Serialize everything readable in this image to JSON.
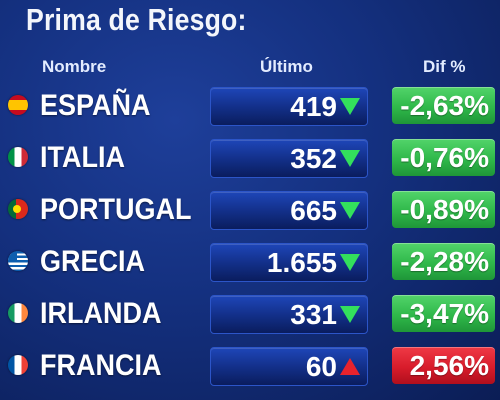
{
  "title": "Prima de Riesgo:",
  "headers": {
    "name": "Nombre",
    "last": "Último",
    "dif": "Dif %"
  },
  "colors": {
    "background": "#14307f",
    "down_arrow": "#33e05c",
    "up_arrow": "#e8232d",
    "negative_change": "#2fb84a",
    "positive_change": "#d81c2b"
  },
  "rows": [
    {
      "flag_icon": "spain-flag-icon",
      "name": "ESPAÑA",
      "last": "419",
      "trend": "down",
      "dif": "-2,63%"
    },
    {
      "flag_icon": "italy-flag-icon",
      "name": "ITALIA",
      "last": "352",
      "trend": "down",
      "dif": "-0,76%"
    },
    {
      "flag_icon": "portugal-flag-icon",
      "name": "PORTUGAL",
      "last": "665",
      "trend": "down",
      "dif": "-0,89%"
    },
    {
      "flag_icon": "greece-flag-icon",
      "name": "GRECIA",
      "last": "1.655",
      "trend": "down",
      "dif": "-2,28%"
    },
    {
      "flag_icon": "ireland-flag-icon",
      "name": "IRLANDA",
      "last": "331",
      "trend": "down",
      "dif": "-3,47%"
    },
    {
      "flag_icon": "france-flag-icon",
      "name": "FRANCIA",
      "last": "60",
      "trend": "up",
      "dif": "2,56%"
    }
  ]
}
